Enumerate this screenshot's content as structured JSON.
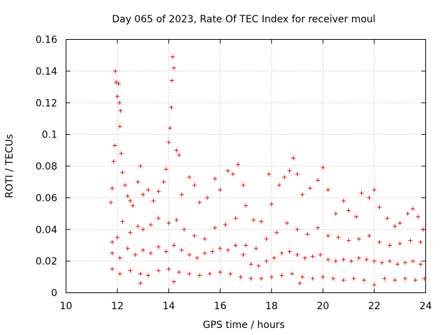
{
  "chart_data": {
    "type": "scatter",
    "title": "Day 065 of 2023, Rate Of TEC Index for receiver moul",
    "xlabel": "GPS time / hours",
    "ylabel": "ROTI / TECUs",
    "xlim": [
      10,
      24
    ],
    "ylim": [
      0,
      0.16
    ],
    "xticks": [
      10,
      12,
      14,
      16,
      18,
      20,
      22,
      24
    ],
    "yticks": [
      0,
      0.02,
      0.04,
      0.06,
      0.08,
      0.1,
      0.12,
      0.14,
      0.16
    ],
    "xtick_labels": [
      "10",
      "12",
      "14",
      "16",
      "18",
      "20",
      "22",
      "24"
    ],
    "ytick_labels": [
      "0",
      "0.02",
      "0.04",
      "0.06",
      "0.08",
      "0.1",
      "0.12",
      "0.14",
      "0.16"
    ],
    "grid": true,
    "marker": "+",
    "color": "#ff0000",
    "series": [
      {
        "name": "ROTI",
        "points": [
          [
            11.75,
            0.057
          ],
          [
            11.8,
            0.066
          ],
          [
            11.85,
            0.083
          ],
          [
            11.9,
            0.093
          ],
          [
            11.92,
            0.14
          ],
          [
            11.95,
            0.133
          ],
          [
            12.0,
            0.124
          ],
          [
            12.05,
            0.132
          ],
          [
            12.08,
            0.12
          ],
          [
            12.1,
            0.105
          ],
          [
            12.12,
            0.115
          ],
          [
            12.15,
            0.088
          ],
          [
            12.2,
            0.076
          ],
          [
            12.3,
            0.068
          ],
          [
            12.4,
            0.061
          ],
          [
            12.5,
            0.058
          ],
          [
            12.6,
            0.055
          ],
          [
            12.8,
            0.07
          ],
          [
            12.9,
            0.08
          ],
          [
            13.0,
            0.062
          ],
          [
            13.2,
            0.065
          ],
          [
            13.4,
            0.058
          ],
          [
            13.6,
            0.064
          ],
          [
            13.8,
            0.07
          ],
          [
            13.9,
            0.078
          ],
          [
            14.0,
            0.095
          ],
          [
            14.05,
            0.104
          ],
          [
            14.1,
            0.117
          ],
          [
            14.12,
            0.134
          ],
          [
            14.15,
            0.149
          ],
          [
            14.2,
            0.142
          ],
          [
            14.3,
            0.09
          ],
          [
            14.4,
            0.087
          ],
          [
            14.5,
            0.062
          ],
          [
            14.8,
            0.073
          ],
          [
            15.0,
            0.068
          ],
          [
            15.2,
            0.057
          ],
          [
            15.5,
            0.06
          ],
          [
            15.8,
            0.072
          ],
          [
            16.0,
            0.065
          ],
          [
            16.3,
            0.077
          ],
          [
            16.5,
            0.075
          ],
          [
            16.7,
            0.081
          ],
          [
            16.9,
            0.068
          ],
          [
            17.0,
            0.055
          ],
          [
            17.3,
            0.046
          ],
          [
            17.6,
            0.045
          ],
          [
            17.9,
            0.075
          ],
          [
            18.0,
            0.056
          ],
          [
            18.3,
            0.068
          ],
          [
            18.5,
            0.073
          ],
          [
            18.7,
            0.077
          ],
          [
            18.85,
            0.085
          ],
          [
            19.0,
            0.075
          ],
          [
            19.2,
            0.062
          ],
          [
            19.5,
            0.066
          ],
          [
            19.8,
            0.071
          ],
          [
            20.0,
            0.079
          ],
          [
            20.2,
            0.065
          ],
          [
            20.5,
            0.05
          ],
          [
            20.8,
            0.058
          ],
          [
            21.0,
            0.052
          ],
          [
            21.3,
            0.048
          ],
          [
            21.5,
            0.063
          ],
          [
            21.8,
            0.06
          ],
          [
            22.0,
            0.065
          ],
          [
            22.2,
            0.054
          ],
          [
            22.5,
            0.047
          ],
          [
            22.8,
            0.042
          ],
          [
            23.0,
            0.044
          ],
          [
            23.3,
            0.05
          ],
          [
            23.5,
            0.053
          ],
          [
            23.7,
            0.048
          ],
          [
            23.9,
            0.04
          ],
          [
            11.8,
            0.032
          ],
          [
            12.0,
            0.035
          ],
          [
            12.2,
            0.045
          ],
          [
            12.5,
            0.038
          ],
          [
            12.8,
            0.042
          ],
          [
            13.0,
            0.04
          ],
          [
            13.3,
            0.043
          ],
          [
            13.6,
            0.047
          ],
          [
            14.0,
            0.044
          ],
          [
            14.3,
            0.046
          ],
          [
            14.6,
            0.04
          ],
          [
            15.0,
            0.036
          ],
          [
            15.4,
            0.034
          ],
          [
            15.8,
            0.041
          ],
          [
            16.2,
            0.043
          ],
          [
            16.6,
            0.047
          ],
          [
            17.0,
            0.03
          ],
          [
            17.4,
            0.028
          ],
          [
            17.8,
            0.034
          ],
          [
            18.2,
            0.038
          ],
          [
            18.6,
            0.044
          ],
          [
            19.0,
            0.04
          ],
          [
            19.4,
            0.037
          ],
          [
            19.8,
            0.041
          ],
          [
            20.2,
            0.036
          ],
          [
            20.6,
            0.035
          ],
          [
            21.0,
            0.033
          ],
          [
            21.4,
            0.034
          ],
          [
            21.8,
            0.036
          ],
          [
            22.2,
            0.032
          ],
          [
            22.6,
            0.03
          ],
          [
            23.0,
            0.031
          ],
          [
            23.4,
            0.033
          ],
          [
            23.8,
            0.032
          ],
          [
            11.8,
            0.025
          ],
          [
            12.1,
            0.022
          ],
          [
            12.4,
            0.028
          ],
          [
            12.7,
            0.024
          ],
          [
            13.0,
            0.027
          ],
          [
            13.3,
            0.025
          ],
          [
            13.6,
            0.029
          ],
          [
            13.9,
            0.026
          ],
          [
            14.2,
            0.03
          ],
          [
            14.5,
            0.027
          ],
          [
            14.8,
            0.024
          ],
          [
            15.1,
            0.022
          ],
          [
            15.4,
            0.025
          ],
          [
            15.7,
            0.026
          ],
          [
            16.0,
            0.028
          ],
          [
            16.3,
            0.027
          ],
          [
            16.6,
            0.03
          ],
          [
            16.9,
            0.024
          ],
          [
            17.2,
            0.018
          ],
          [
            17.5,
            0.017
          ],
          [
            17.8,
            0.02
          ],
          [
            18.1,
            0.022
          ],
          [
            18.4,
            0.025
          ],
          [
            18.7,
            0.026
          ],
          [
            19.0,
            0.024
          ],
          [
            19.3,
            0.022
          ],
          [
            19.6,
            0.023
          ],
          [
            19.9,
            0.024
          ],
          [
            20.2,
            0.021
          ],
          [
            20.5,
            0.02
          ],
          [
            20.8,
            0.021
          ],
          [
            21.1,
            0.02
          ],
          [
            21.4,
            0.022
          ],
          [
            21.7,
            0.021
          ],
          [
            22.0,
            0.02
          ],
          [
            22.3,
            0.019
          ],
          [
            22.6,
            0.02
          ],
          [
            22.9,
            0.018
          ],
          [
            23.2,
            0.019
          ],
          [
            23.5,
            0.02
          ],
          [
            23.8,
            0.018
          ],
          [
            11.8,
            0.015
          ],
          [
            12.1,
            0.012
          ],
          [
            12.5,
            0.014
          ],
          [
            12.9,
            0.012
          ],
          [
            13.2,
            0.011
          ],
          [
            13.6,
            0.014
          ],
          [
            14.0,
            0.015
          ],
          [
            14.4,
            0.013
          ],
          [
            14.8,
            0.012
          ],
          [
            15.2,
            0.011
          ],
          [
            15.6,
            0.012
          ],
          [
            16.0,
            0.013
          ],
          [
            16.4,
            0.012
          ],
          [
            16.8,
            0.01
          ],
          [
            17.2,
            0.009
          ],
          [
            17.6,
            0.009
          ],
          [
            18.0,
            0.01
          ],
          [
            18.4,
            0.011
          ],
          [
            18.8,
            0.012
          ],
          [
            19.2,
            0.01
          ],
          [
            19.6,
            0.009
          ],
          [
            20.0,
            0.01
          ],
          [
            20.4,
            0.009
          ],
          [
            20.8,
            0.008
          ],
          [
            21.2,
            0.009
          ],
          [
            21.6,
            0.008
          ],
          [
            22.0,
            0.005
          ],
          [
            22.4,
            0.009
          ],
          [
            22.8,
            0.008
          ],
          [
            23.2,
            0.009
          ],
          [
            23.6,
            0.008
          ],
          [
            23.95,
            0.009
          ],
          [
            12.9,
            0.006
          ],
          [
            14.2,
            0.007
          ],
          [
            19.1,
            0.006
          ]
        ]
      }
    ]
  }
}
